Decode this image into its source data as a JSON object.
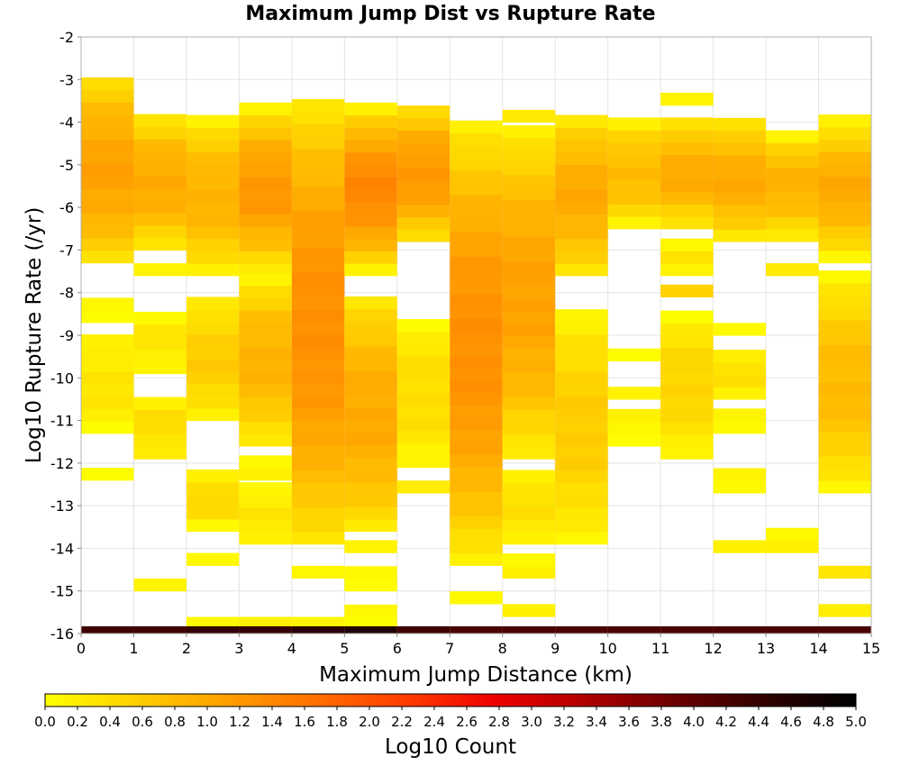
{
  "chart_data": {
    "type": "heatmap",
    "title": "Maximum Jump Dist vs Rupture Rate",
    "xlabel": "Maximum Jump Distance (km)",
    "ylabel": "Log10 Rupture Rate (/yr)",
    "xlim": [
      0,
      15
    ],
    "ylim": [
      -16,
      -2
    ],
    "x_ticks": [
      "0",
      "1",
      "2",
      "3",
      "4",
      "5",
      "6",
      "7",
      "8",
      "9",
      "10",
      "11",
      "12",
      "13",
      "14",
      "15"
    ],
    "y_ticks": [
      "-2",
      "-3",
      "-4",
      "-5",
      "-6",
      "-7",
      "-8",
      "-9",
      "-10",
      "-11",
      "-12",
      "-13",
      "-14",
      "-15",
      "-16"
    ],
    "grid": true,
    "x_bin_width": 1,
    "y_bin_height": 0.29,
    "color_scale": {
      "label": "Log10 Count",
      "min": 0,
      "max": 5,
      "ticks": [
        "0.0",
        "0.2",
        "0.4",
        "0.6",
        "0.8",
        "1.0",
        "1.2",
        "1.4",
        "1.6",
        "1.8",
        "2.0",
        "2.2",
        "2.4",
        "2.6",
        "2.8",
        "3.0",
        "3.2",
        "3.4",
        "3.6",
        "3.8",
        "4.0",
        "4.2",
        "4.4",
        "4.6",
        "4.8",
        "5.0"
      ],
      "colors": [
        "#ffff00",
        "#ffd000",
        "#ffa000",
        "#ff7000",
        "#ff3c00",
        "#ee0000",
        "#b00000",
        "#6a0000",
        "#300000",
        "#000000"
      ]
    },
    "bottom_row": {
      "y": -16,
      "values": [
        4.3,
        4.3,
        4.4,
        4.4,
        4.5,
        4.6,
        4.3,
        4.2,
        4.2,
        4.2,
        4.2,
        4.2,
        4.2,
        4.2,
        4.2
      ]
    },
    "columns": [
      {
        "x": 0,
        "ranges": [
          {
            "y0": -7.3,
            "y1": -3.0,
            "v0": 0.4,
            "v1": 1.1
          },
          {
            "y0": -8.7,
            "y1": -8.1,
            "v0": 0.1,
            "v1": 0.2
          },
          {
            "y0": -11.3,
            "y1": -9.0,
            "v0": 0.1,
            "v1": 0.3
          },
          {
            "y0": -12.4,
            "y1": -12.1,
            "v0": 0.1,
            "v1": 0.1
          }
        ]
      },
      {
        "x": 1,
        "ranges": [
          {
            "y0": -7.0,
            "y1": -3.9,
            "v0": 0.3,
            "v1": 1.0
          },
          {
            "y0": -7.6,
            "y1": -7.3,
            "v0": 0.1,
            "v1": 0.1
          },
          {
            "y0": -9.9,
            "y1": -8.4,
            "v0": 0.1,
            "v1": 0.3
          },
          {
            "y0": -11.9,
            "y1": -10.5,
            "v0": 0.2,
            "v1": 0.4
          },
          {
            "y0": -15.0,
            "y1": -14.7,
            "v0": 0.1,
            "v1": 0.1
          }
        ]
      },
      {
        "x": 2,
        "ranges": [
          {
            "y0": -7.6,
            "y1": -3.9,
            "v0": 0.2,
            "v1": 0.9
          },
          {
            "y0": -11.0,
            "y1": -8.1,
            "v0": 0.2,
            "v1": 0.6
          },
          {
            "y0": -13.6,
            "y1": -12.1,
            "v0": 0.1,
            "v1": 0.5
          },
          {
            "y0": -14.4,
            "y1": -14.1,
            "v0": 0.1,
            "v1": 0.1
          },
          {
            "y0": -15.9,
            "y1": -15.6,
            "v0": 0.1,
            "v1": 0.1
          }
        ]
      },
      {
        "x": 3,
        "ranges": [
          {
            "y0": -7.6,
            "y1": -3.6,
            "v0": 0.2,
            "v1": 1.2
          },
          {
            "y0": -11.6,
            "y1": -7.6,
            "v0": 0.2,
            "v1": 0.9
          },
          {
            "y0": -12.4,
            "y1": -11.9,
            "v0": 0.1,
            "v1": 0.2
          },
          {
            "y0": -13.9,
            "y1": -12.4,
            "v0": 0.1,
            "v1": 0.3
          },
          {
            "y0": -15.9,
            "y1": -15.6,
            "v0": 0.1,
            "v1": 0.1
          }
        ]
      },
      {
        "x": 4,
        "ranges": [
          {
            "y0": -13.9,
            "y1": -3.6,
            "v0": 0.3,
            "v1": 1.3
          },
          {
            "y0": -14.7,
            "y1": -14.4,
            "v0": 0.1,
            "v1": 0.1
          },
          {
            "y0": -15.9,
            "y1": -15.6,
            "v0": 0.1,
            "v1": 0.1
          }
        ]
      },
      {
        "x": 5,
        "ranges": [
          {
            "y0": -7.6,
            "y1": -3.6,
            "v0": 0.2,
            "v1": 1.4
          },
          {
            "y0": -13.6,
            "y1": -8.1,
            "v0": 0.3,
            "v1": 1.0
          },
          {
            "y0": -14.1,
            "y1": -13.9,
            "v0": 0.1,
            "v1": 0.2
          },
          {
            "y0": -15.0,
            "y1": -14.4,
            "v0": 0.1,
            "v1": 0.3
          },
          {
            "y0": -15.9,
            "y1": -15.3,
            "v0": 0.1,
            "v1": 0.3
          }
        ]
      },
      {
        "x": 6,
        "ranges": [
          {
            "y0": -6.8,
            "y1": -3.6,
            "v0": 0.4,
            "v1": 1.2
          },
          {
            "y0": -12.1,
            "y1": -8.7,
            "v0": 0.1,
            "v1": 0.4
          },
          {
            "y0": -12.7,
            "y1": -12.4,
            "v0": 0.1,
            "v1": 0.2
          }
        ]
      },
      {
        "x": 7,
        "ranges": [
          {
            "y0": -14.4,
            "y1": -3.9,
            "v0": 0.2,
            "v1": 1.3
          },
          {
            "y0": -15.3,
            "y1": -15.0,
            "v0": 0.1,
            "v1": 0.1
          }
        ]
      },
      {
        "x": 8,
        "ranges": [
          {
            "y0": -4.0,
            "y1": -3.6,
            "v0": 0.1,
            "v1": 0.2
          },
          {
            "y0": -11.9,
            "y1": -4.2,
            "v0": 0.2,
            "v1": 1.1
          },
          {
            "y0": -13.9,
            "y1": -12.1,
            "v0": 0.1,
            "v1": 0.4
          },
          {
            "y0": -14.7,
            "y1": -14.1,
            "v0": 0.1,
            "v1": 0.1
          },
          {
            "y0": -15.6,
            "y1": -15.3,
            "v0": 0.1,
            "v1": 0.1
          }
        ]
      },
      {
        "x": 9,
        "ranges": [
          {
            "y0": -7.6,
            "y1": -3.9,
            "v0": 0.3,
            "v1": 1.0
          },
          {
            "y0": -13.9,
            "y1": -8.4,
            "v0": 0.1,
            "v1": 0.6
          }
        ]
      },
      {
        "x": 10,
        "ranges": [
          {
            "y0": -6.5,
            "y1": -3.9,
            "v0": 0.2,
            "v1": 0.8
          },
          {
            "y0": -9.6,
            "y1": -9.3,
            "v0": 0.1,
            "v1": 0.1
          },
          {
            "y0": -10.5,
            "y1": -10.2,
            "v0": 0.1,
            "v1": 0.2
          },
          {
            "y0": -11.6,
            "y1": -10.8,
            "v0": 0.1,
            "v1": 0.1
          }
        ]
      },
      {
        "x": 11,
        "ranges": [
          {
            "y0": -3.6,
            "y1": -3.3,
            "v0": 0.1,
            "v1": 0.1
          },
          {
            "y0": -6.5,
            "y1": -3.9,
            "v0": 0.3,
            "v1": 1.0
          },
          {
            "y0": -7.6,
            "y1": -6.8,
            "v0": 0.1,
            "v1": 0.4
          },
          {
            "y0": -8.1,
            "y1": -7.8,
            "v0": 0.5,
            "v1": 0.5
          },
          {
            "y0": -11.9,
            "y1": -8.4,
            "v0": 0.1,
            "v1": 0.5
          }
        ]
      },
      {
        "x": 12,
        "ranges": [
          {
            "y0": -6.8,
            "y1": -3.9,
            "v0": 0.3,
            "v1": 1.0
          },
          {
            "y0": -9.0,
            "y1": -8.7,
            "v0": 0.1,
            "v1": 0.1
          },
          {
            "y0": -10.5,
            "y1": -9.3,
            "v0": 0.2,
            "v1": 0.4
          },
          {
            "y0": -11.3,
            "y1": -10.8,
            "v0": 0.1,
            "v1": 0.1
          },
          {
            "y0": -12.7,
            "y1": -12.1,
            "v0": 0.1,
            "v1": 0.2
          },
          {
            "y0": -14.1,
            "y1": -13.9,
            "v0": 0.1,
            "v1": 0.2
          }
        ]
      },
      {
        "x": 13,
        "ranges": [
          {
            "y0": -6.8,
            "y1": -4.2,
            "v0": 0.2,
            "v1": 0.9
          },
          {
            "y0": -7.6,
            "y1": -7.3,
            "v0": 0.1,
            "v1": 0.2
          },
          {
            "y0": -14.1,
            "y1": -13.6,
            "v0": 0.1,
            "v1": 0.1
          }
        ]
      },
      {
        "x": 14,
        "ranges": [
          {
            "y0": -7.3,
            "y1": -3.9,
            "v0": 0.1,
            "v1": 1.0
          },
          {
            "y0": -12.7,
            "y1": -7.6,
            "v0": 0.1,
            "v1": 0.8
          },
          {
            "y0": -14.7,
            "y1": -14.4,
            "v0": 0.3,
            "v1": 0.3
          },
          {
            "y0": -15.6,
            "y1": -15.3,
            "v0": 0.1,
            "v1": 0.2
          }
        ]
      }
    ]
  }
}
